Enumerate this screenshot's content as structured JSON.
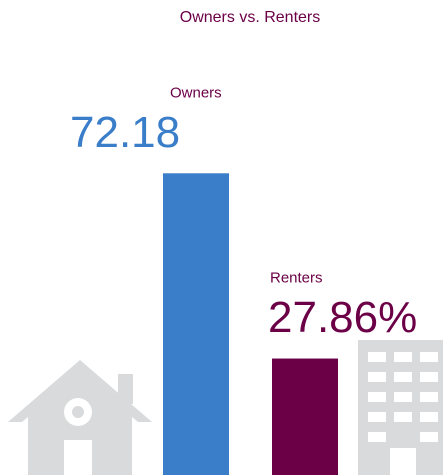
{
  "chart_data": {
    "type": "bar",
    "title": "Owners vs. Renters",
    "categories": [
      "Owners",
      "Renters"
    ],
    "values": [
      72.18,
      27.86
    ],
    "value_labels": [
      "72.18",
      "27.86%"
    ],
    "colors": [
      "#3a7dc9",
      "#6b0047"
    ]
  }
}
